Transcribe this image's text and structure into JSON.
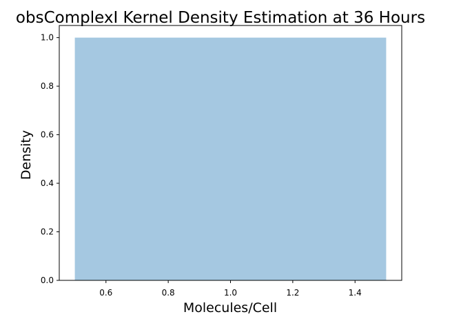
{
  "chart_data": {
    "type": "bar",
    "title": "obsComplexI Kernel Density Estimation at 36 Hours",
    "xlabel": "Molecules/Cell",
    "ylabel": "Density",
    "xlim": [
      0.45,
      1.55
    ],
    "ylim": [
      0.0,
      1.05
    ],
    "xticks": [
      0.6,
      0.8,
      1.0,
      1.2,
      1.4
    ],
    "xtick_labels": [
      "0.6",
      "0.8",
      "1.0",
      "1.2",
      "1.4"
    ],
    "yticks": [
      0.0,
      0.2,
      0.4,
      0.6,
      0.8,
      1.0
    ],
    "ytick_labels": [
      "0.0",
      "0.2",
      "0.4",
      "0.6",
      "0.8",
      "1.0"
    ],
    "grid": false,
    "bars": [
      {
        "x_start": 0.5,
        "x_end": 1.5,
        "value": 1.0
      }
    ],
    "colors": {
      "bar": "#a5c8e1",
      "axes": "#000000",
      "background": "#ffffff"
    }
  }
}
